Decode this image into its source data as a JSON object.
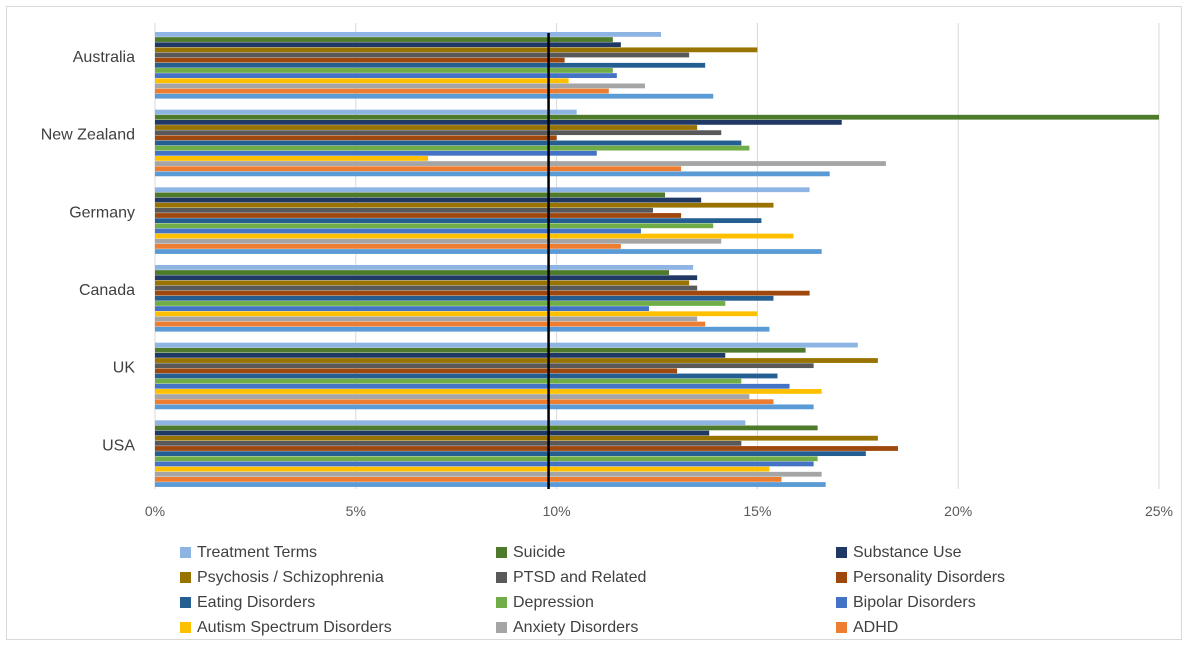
{
  "chart_data": {
    "type": "bar",
    "orientation": "horizontal",
    "title": "",
    "xlabel": "",
    "ylabel": "",
    "xlim": [
      0,
      25
    ],
    "x_ticks": [
      "0%",
      "5%",
      "10%",
      "15%",
      "20%",
      "25%"
    ],
    "grid": "vertical",
    "legend_position": "bottom",
    "reference_line": {
      "value": 9.8,
      "color": "#000000"
    },
    "categories": [
      "Australia",
      "New Zealand",
      "Germany",
      "Canada",
      "UK",
      "USA"
    ],
    "series": [
      {
        "name": "Treatment Terms",
        "color": "#8EB4E3",
        "values": [
          12.6,
          10.5,
          16.3,
          13.4,
          17.5,
          14.7
        ]
      },
      {
        "name": "Suicide",
        "color": "#4E7A2C",
        "values": [
          11.4,
          25.0,
          12.7,
          12.8,
          16.2,
          16.5
        ]
      },
      {
        "name": "Substance Use",
        "color": "#203864",
        "values": [
          11.6,
          17.1,
          13.6,
          13.5,
          14.2,
          13.8
        ]
      },
      {
        "name": "Psychosis / Schizophrenia",
        "color": "#997300",
        "values": [
          15.0,
          13.5,
          15.4,
          13.3,
          18.0,
          18.0
        ]
      },
      {
        "name": "PTSD and Related",
        "color": "#595959",
        "values": [
          13.3,
          14.1,
          12.4,
          13.5,
          16.4,
          14.6
        ]
      },
      {
        "name": "Personality Disorders",
        "color": "#9E480E",
        "values": [
          10.2,
          10.0,
          13.1,
          16.3,
          13.0,
          18.5
        ]
      },
      {
        "name": "Eating Disorders",
        "color": "#255E91",
        "values": [
          13.7,
          14.6,
          15.1,
          15.4,
          15.5,
          17.7
        ]
      },
      {
        "name": "Depression",
        "color": "#70AD47",
        "values": [
          11.4,
          14.8,
          13.9,
          14.2,
          14.6,
          16.5
        ]
      },
      {
        "name": "Bipolar Disorders",
        "color": "#4472C4",
        "values": [
          11.5,
          11.0,
          12.1,
          12.3,
          15.8,
          16.4
        ]
      },
      {
        "name": "Autism Spectrum Disorders",
        "color": "#FFC000",
        "values": [
          10.3,
          6.8,
          15.9,
          15.0,
          16.6,
          15.3
        ]
      },
      {
        "name": "Anxiety Disorders",
        "color": "#A5A5A5",
        "values": [
          12.2,
          18.2,
          14.1,
          13.5,
          14.8,
          16.6
        ]
      },
      {
        "name": "ADHD",
        "color": "#ED7D31",
        "values": [
          11.3,
          13.1,
          11.6,
          13.7,
          15.4,
          15.6
        ]
      },
      {
        "name": "",
        "color": "#5B9BD5",
        "values": [
          13.9,
          16.8,
          16.6,
          15.3,
          16.4,
          16.7
        ]
      }
    ]
  }
}
